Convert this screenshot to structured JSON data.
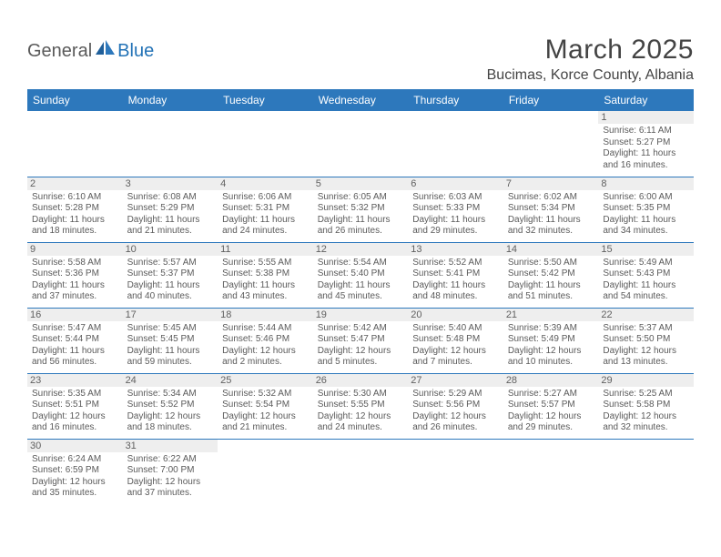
{
  "logo": {
    "part1": "General",
    "part2": "Blue"
  },
  "title": "March 2025",
  "location": "Bucimas, Korce County, Albania",
  "header_bg": "#2d78bc",
  "header_fg": "#ffffff",
  "border_color": "#2d78bc",
  "daynum_bg": "#eeeeee",
  "text_color": "#5a5a5a",
  "dayHeaders": [
    "Sunday",
    "Monday",
    "Tuesday",
    "Wednesday",
    "Thursday",
    "Friday",
    "Saturday"
  ],
  "weeks": [
    [
      {
        "n": "",
        "sr": "",
        "ss": "",
        "d1": "",
        "d2": ""
      },
      {
        "n": "",
        "sr": "",
        "ss": "",
        "d1": "",
        "d2": ""
      },
      {
        "n": "",
        "sr": "",
        "ss": "",
        "d1": "",
        "d2": ""
      },
      {
        "n": "",
        "sr": "",
        "ss": "",
        "d1": "",
        "d2": ""
      },
      {
        "n": "",
        "sr": "",
        "ss": "",
        "d1": "",
        "d2": ""
      },
      {
        "n": "",
        "sr": "",
        "ss": "",
        "d1": "",
        "d2": ""
      },
      {
        "n": "1",
        "sr": "Sunrise: 6:11 AM",
        "ss": "Sunset: 5:27 PM",
        "d1": "Daylight: 11 hours",
        "d2": "and 16 minutes."
      }
    ],
    [
      {
        "n": "2",
        "sr": "Sunrise: 6:10 AM",
        "ss": "Sunset: 5:28 PM",
        "d1": "Daylight: 11 hours",
        "d2": "and 18 minutes."
      },
      {
        "n": "3",
        "sr": "Sunrise: 6:08 AM",
        "ss": "Sunset: 5:29 PM",
        "d1": "Daylight: 11 hours",
        "d2": "and 21 minutes."
      },
      {
        "n": "4",
        "sr": "Sunrise: 6:06 AM",
        "ss": "Sunset: 5:31 PM",
        "d1": "Daylight: 11 hours",
        "d2": "and 24 minutes."
      },
      {
        "n": "5",
        "sr": "Sunrise: 6:05 AM",
        "ss": "Sunset: 5:32 PM",
        "d1": "Daylight: 11 hours",
        "d2": "and 26 minutes."
      },
      {
        "n": "6",
        "sr": "Sunrise: 6:03 AM",
        "ss": "Sunset: 5:33 PM",
        "d1": "Daylight: 11 hours",
        "d2": "and 29 minutes."
      },
      {
        "n": "7",
        "sr": "Sunrise: 6:02 AM",
        "ss": "Sunset: 5:34 PM",
        "d1": "Daylight: 11 hours",
        "d2": "and 32 minutes."
      },
      {
        "n": "8",
        "sr": "Sunrise: 6:00 AM",
        "ss": "Sunset: 5:35 PM",
        "d1": "Daylight: 11 hours",
        "d2": "and 34 minutes."
      }
    ],
    [
      {
        "n": "9",
        "sr": "Sunrise: 5:58 AM",
        "ss": "Sunset: 5:36 PM",
        "d1": "Daylight: 11 hours",
        "d2": "and 37 minutes."
      },
      {
        "n": "10",
        "sr": "Sunrise: 5:57 AM",
        "ss": "Sunset: 5:37 PM",
        "d1": "Daylight: 11 hours",
        "d2": "and 40 minutes."
      },
      {
        "n": "11",
        "sr": "Sunrise: 5:55 AM",
        "ss": "Sunset: 5:38 PM",
        "d1": "Daylight: 11 hours",
        "d2": "and 43 minutes."
      },
      {
        "n": "12",
        "sr": "Sunrise: 5:54 AM",
        "ss": "Sunset: 5:40 PM",
        "d1": "Daylight: 11 hours",
        "d2": "and 45 minutes."
      },
      {
        "n": "13",
        "sr": "Sunrise: 5:52 AM",
        "ss": "Sunset: 5:41 PM",
        "d1": "Daylight: 11 hours",
        "d2": "and 48 minutes."
      },
      {
        "n": "14",
        "sr": "Sunrise: 5:50 AM",
        "ss": "Sunset: 5:42 PM",
        "d1": "Daylight: 11 hours",
        "d2": "and 51 minutes."
      },
      {
        "n": "15",
        "sr": "Sunrise: 5:49 AM",
        "ss": "Sunset: 5:43 PM",
        "d1": "Daylight: 11 hours",
        "d2": "and 54 minutes."
      }
    ],
    [
      {
        "n": "16",
        "sr": "Sunrise: 5:47 AM",
        "ss": "Sunset: 5:44 PM",
        "d1": "Daylight: 11 hours",
        "d2": "and 56 minutes."
      },
      {
        "n": "17",
        "sr": "Sunrise: 5:45 AM",
        "ss": "Sunset: 5:45 PM",
        "d1": "Daylight: 11 hours",
        "d2": "and 59 minutes."
      },
      {
        "n": "18",
        "sr": "Sunrise: 5:44 AM",
        "ss": "Sunset: 5:46 PM",
        "d1": "Daylight: 12 hours",
        "d2": "and 2 minutes."
      },
      {
        "n": "19",
        "sr": "Sunrise: 5:42 AM",
        "ss": "Sunset: 5:47 PM",
        "d1": "Daylight: 12 hours",
        "d2": "and 5 minutes."
      },
      {
        "n": "20",
        "sr": "Sunrise: 5:40 AM",
        "ss": "Sunset: 5:48 PM",
        "d1": "Daylight: 12 hours",
        "d2": "and 7 minutes."
      },
      {
        "n": "21",
        "sr": "Sunrise: 5:39 AM",
        "ss": "Sunset: 5:49 PM",
        "d1": "Daylight: 12 hours",
        "d2": "and 10 minutes."
      },
      {
        "n": "22",
        "sr": "Sunrise: 5:37 AM",
        "ss": "Sunset: 5:50 PM",
        "d1": "Daylight: 12 hours",
        "d2": "and 13 minutes."
      }
    ],
    [
      {
        "n": "23",
        "sr": "Sunrise: 5:35 AM",
        "ss": "Sunset: 5:51 PM",
        "d1": "Daylight: 12 hours",
        "d2": "and 16 minutes."
      },
      {
        "n": "24",
        "sr": "Sunrise: 5:34 AM",
        "ss": "Sunset: 5:52 PM",
        "d1": "Daylight: 12 hours",
        "d2": "and 18 minutes."
      },
      {
        "n": "25",
        "sr": "Sunrise: 5:32 AM",
        "ss": "Sunset: 5:54 PM",
        "d1": "Daylight: 12 hours",
        "d2": "and 21 minutes."
      },
      {
        "n": "26",
        "sr": "Sunrise: 5:30 AM",
        "ss": "Sunset: 5:55 PM",
        "d1": "Daylight: 12 hours",
        "d2": "and 24 minutes."
      },
      {
        "n": "27",
        "sr": "Sunrise: 5:29 AM",
        "ss": "Sunset: 5:56 PM",
        "d1": "Daylight: 12 hours",
        "d2": "and 26 minutes."
      },
      {
        "n": "28",
        "sr": "Sunrise: 5:27 AM",
        "ss": "Sunset: 5:57 PM",
        "d1": "Daylight: 12 hours",
        "d2": "and 29 minutes."
      },
      {
        "n": "29",
        "sr": "Sunrise: 5:25 AM",
        "ss": "Sunset: 5:58 PM",
        "d1": "Daylight: 12 hours",
        "d2": "and 32 minutes."
      }
    ],
    [
      {
        "n": "30",
        "sr": "Sunrise: 6:24 AM",
        "ss": "Sunset: 6:59 PM",
        "d1": "Daylight: 12 hours",
        "d2": "and 35 minutes."
      },
      {
        "n": "31",
        "sr": "Sunrise: 6:22 AM",
        "ss": "Sunset: 7:00 PM",
        "d1": "Daylight: 12 hours",
        "d2": "and 37 minutes."
      },
      {
        "n": "",
        "sr": "",
        "ss": "",
        "d1": "",
        "d2": ""
      },
      {
        "n": "",
        "sr": "",
        "ss": "",
        "d1": "",
        "d2": ""
      },
      {
        "n": "",
        "sr": "",
        "ss": "",
        "d1": "",
        "d2": ""
      },
      {
        "n": "",
        "sr": "",
        "ss": "",
        "d1": "",
        "d2": ""
      },
      {
        "n": "",
        "sr": "",
        "ss": "",
        "d1": "",
        "d2": ""
      }
    ]
  ]
}
